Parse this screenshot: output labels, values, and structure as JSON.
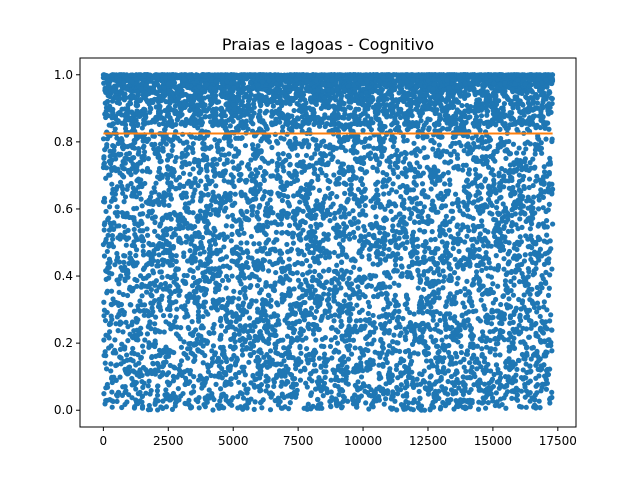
{
  "chart_data": {
    "type": "scatter",
    "title": "Praias e lagoas - Cognitivo",
    "xlabel": "",
    "ylabel": "",
    "xlim": [
      -900,
      18200
    ],
    "ylim": [
      -0.05,
      1.05
    ],
    "x_ticks": [
      0,
      2500,
      5000,
      7500,
      10000,
      12500,
      15000,
      17500
    ],
    "x_tick_labels": [
      "0",
      "2500",
      "5000",
      "7500",
      "10000",
      "12500",
      "15000",
      "17500"
    ],
    "y_ticks": [
      0.0,
      0.2,
      0.4,
      0.6,
      0.8,
      1.0
    ],
    "y_tick_labels": [
      "0.0",
      "0.2",
      "0.4",
      "0.6",
      "0.8",
      "1.0"
    ],
    "grid": false,
    "series": [
      {
        "kind": "scatter",
        "color": "#1f77b4",
        "x_range": [
          0,
          17300
        ],
        "n_points": 17300,
        "note_distribution": "dense band between 0.85 and 1.0, sparser uniform scatter from 0.0 to 0.85"
      },
      {
        "kind": "line",
        "color": "#ff7f0e",
        "x": [
          0,
          17300
        ],
        "y": [
          0.825,
          0.825
        ]
      }
    ]
  }
}
